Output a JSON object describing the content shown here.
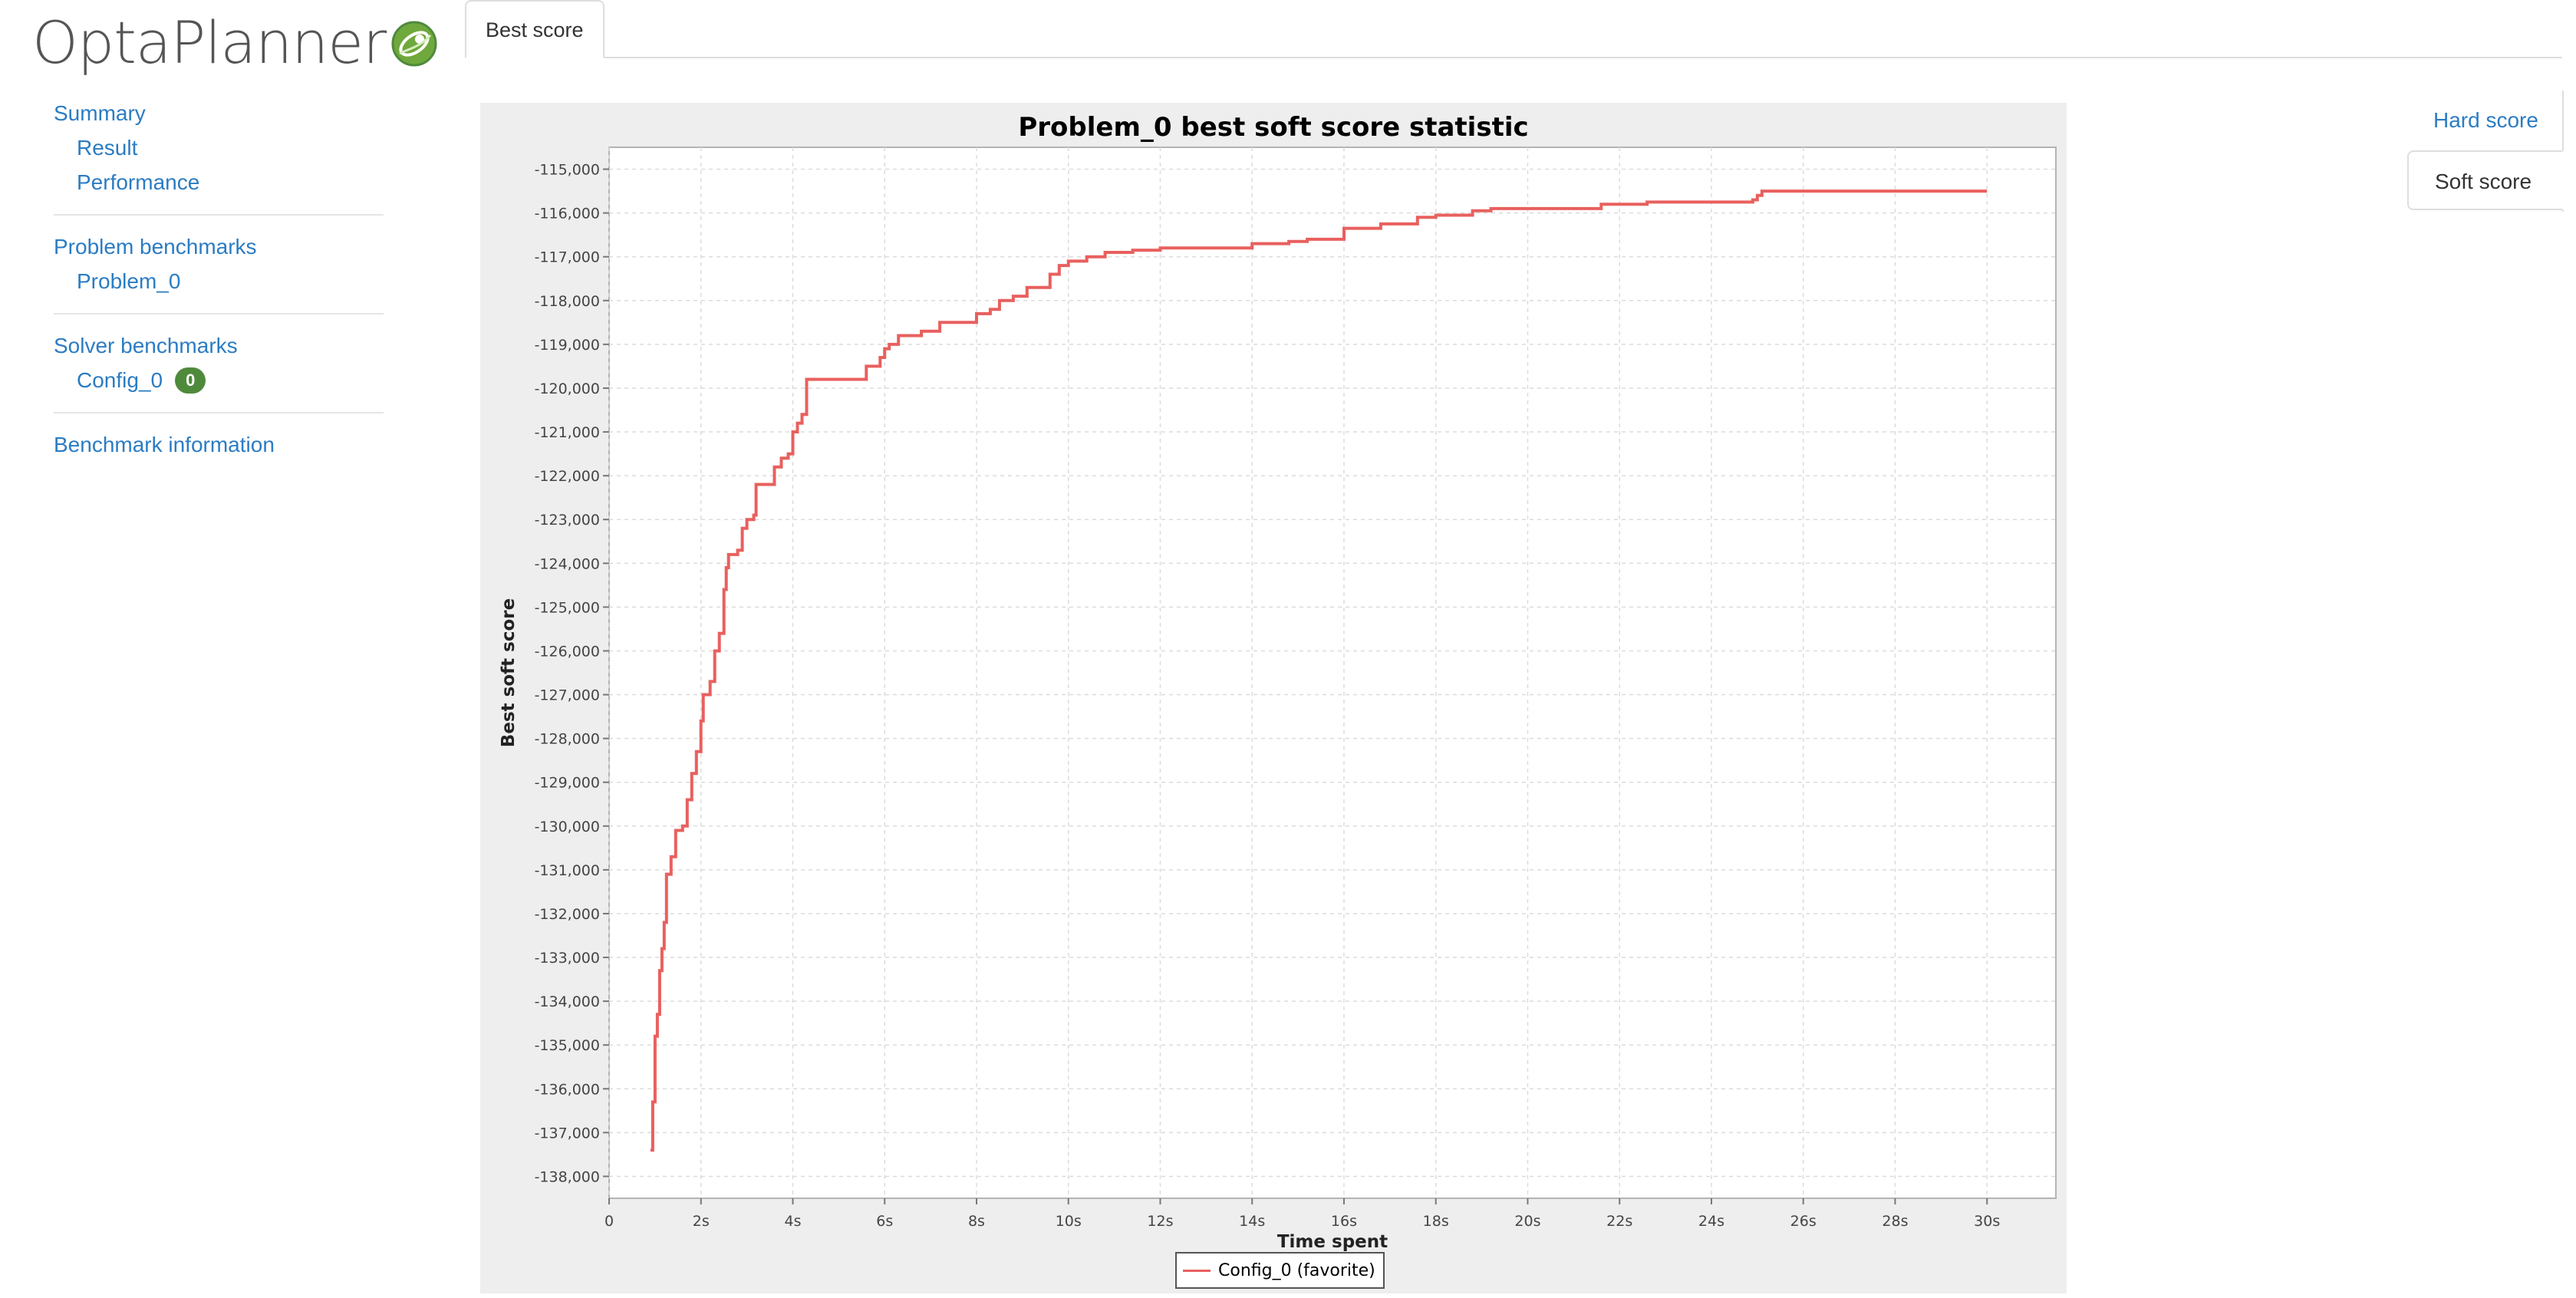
{
  "logo": {
    "text": "OptaPlanner",
    "mark_icon": "optaplanner-leaf-icon"
  },
  "sidebar": {
    "summary": "Summary",
    "result": "Result",
    "performance": "Performance",
    "problem_benchmarks": "Problem benchmarks",
    "problem_0": "Problem_0",
    "solver_benchmarks": "Solver benchmarks",
    "config_0": "Config_0",
    "config_0_badge": "0",
    "benchmark_information": "Benchmark information"
  },
  "top_tabs": {
    "best_score": "Best score"
  },
  "right_tabs": {
    "hard_score": "Hard score",
    "soft_score": "Soft score",
    "active": "Soft score"
  },
  "colors": {
    "link": "#2b7cc3",
    "series": "#e8605e",
    "badge": "#4f8a3c",
    "panel": "#eeeeee"
  },
  "chart_data": {
    "type": "line",
    "title": "Problem_0 best soft score statistic",
    "xlabel": "Time spent",
    "ylabel": "Best soft score",
    "xlim": [
      0,
      31.5
    ],
    "ylim": [
      -138500,
      -114500
    ],
    "grid": true,
    "legend_placement": "bottom-center",
    "x_ticks": [
      0,
      2,
      4,
      6,
      8,
      10,
      12,
      14,
      16,
      18,
      20,
      22,
      24,
      26,
      28,
      30
    ],
    "x_tick_labels": [
      "0",
      "2s",
      "4s",
      "6s",
      "8s",
      "10s",
      "12s",
      "14s",
      "16s",
      "18s",
      "20s",
      "22s",
      "24s",
      "26s",
      "28s",
      "30s"
    ],
    "y_ticks": [
      -115000,
      -116000,
      -117000,
      -118000,
      -119000,
      -120000,
      -121000,
      -122000,
      -123000,
      -124000,
      -125000,
      -126000,
      -127000,
      -128000,
      -129000,
      -130000,
      -131000,
      -132000,
      -133000,
      -134000,
      -135000,
      -136000,
      -137000,
      -138000
    ],
    "y_tick_labels": [
      "-115,000",
      "-116,000",
      "-117,000",
      "-118,000",
      "-119,000",
      "-120,000",
      "-121,000",
      "-122,000",
      "-123,000",
      "-124,000",
      "-125,000",
      "-126,000",
      "-127,000",
      "-128,000",
      "-129,000",
      "-130,000",
      "-131,000",
      "-132,000",
      "-133,000",
      "-134,000",
      "-135,000",
      "-136,000",
      "-137,000",
      "-138,000"
    ],
    "series": [
      {
        "name": "Config_0 (favorite)",
        "color": "#e8605e",
        "step": true,
        "points": [
          [
            0.9,
            -137400
          ],
          [
            0.95,
            -136300
          ],
          [
            1.0,
            -134800
          ],
          [
            1.05,
            -134300
          ],
          [
            1.1,
            -133300
          ],
          [
            1.15,
            -132800
          ],
          [
            1.2,
            -132200
          ],
          [
            1.25,
            -131100
          ],
          [
            1.35,
            -130700
          ],
          [
            1.45,
            -130100
          ],
          [
            1.6,
            -130000
          ],
          [
            1.7,
            -129400
          ],
          [
            1.8,
            -128800
          ],
          [
            1.9,
            -128300
          ],
          [
            2.0,
            -127600
          ],
          [
            2.05,
            -127000
          ],
          [
            2.2,
            -126700
          ],
          [
            2.3,
            -126000
          ],
          [
            2.4,
            -125600
          ],
          [
            2.5,
            -124600
          ],
          [
            2.55,
            -124100
          ],
          [
            2.6,
            -123800
          ],
          [
            2.8,
            -123700
          ],
          [
            2.9,
            -123200
          ],
          [
            3.0,
            -123000
          ],
          [
            3.15,
            -122900
          ],
          [
            3.2,
            -122200
          ],
          [
            3.6,
            -121800
          ],
          [
            3.75,
            -121600
          ],
          [
            3.9,
            -121500
          ],
          [
            4.0,
            -121000
          ],
          [
            4.1,
            -120800
          ],
          [
            4.2,
            -120600
          ],
          [
            4.3,
            -119800
          ],
          [
            4.6,
            -119800
          ],
          [
            5.6,
            -119500
          ],
          [
            5.9,
            -119300
          ],
          [
            6.0,
            -119100
          ],
          [
            6.1,
            -119000
          ],
          [
            6.3,
            -118800
          ],
          [
            6.8,
            -118700
          ],
          [
            7.2,
            -118500
          ],
          [
            8.0,
            -118300
          ],
          [
            8.3,
            -118200
          ],
          [
            8.5,
            -118000
          ],
          [
            8.8,
            -117900
          ],
          [
            9.1,
            -117700
          ],
          [
            9.6,
            -117400
          ],
          [
            9.8,
            -117200
          ],
          [
            10.0,
            -117100
          ],
          [
            10.4,
            -117000
          ],
          [
            10.8,
            -116900
          ],
          [
            11.4,
            -116850
          ],
          [
            12.0,
            -116800
          ],
          [
            14.0,
            -116700
          ],
          [
            14.8,
            -116650
          ],
          [
            15.2,
            -116600
          ],
          [
            16.0,
            -116350
          ],
          [
            16.8,
            -116250
          ],
          [
            17.6,
            -116100
          ],
          [
            18.0,
            -116050
          ],
          [
            18.8,
            -115950
          ],
          [
            19.2,
            -115900
          ],
          [
            21.6,
            -115800
          ],
          [
            22.6,
            -115750
          ],
          [
            24.9,
            -115700
          ],
          [
            25.0,
            -115600
          ],
          [
            25.1,
            -115500
          ],
          [
            30.0,
            -115500
          ]
        ]
      }
    ]
  }
}
